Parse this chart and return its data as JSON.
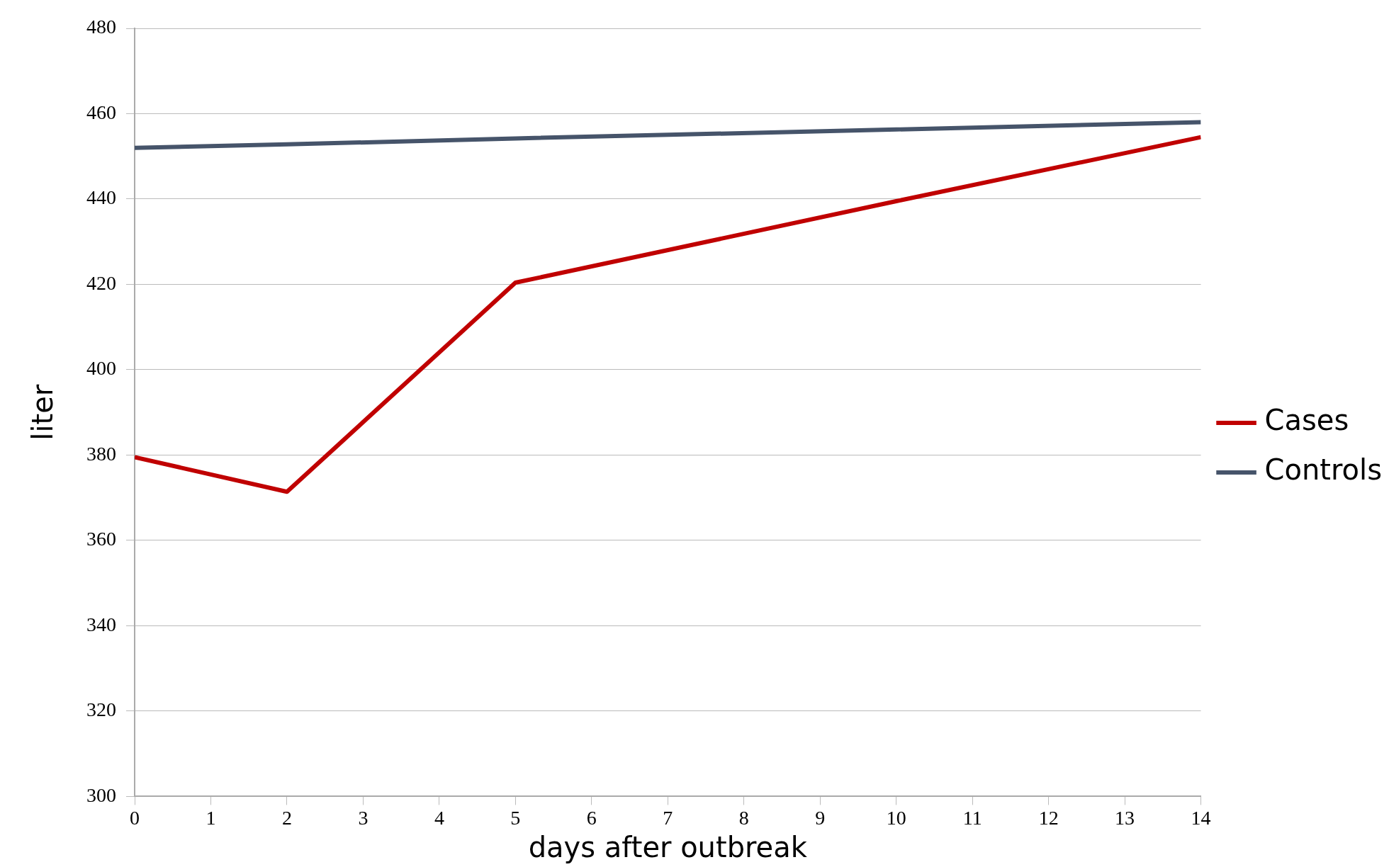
{
  "chart_data": {
    "type": "line",
    "xlabel": "days after outbreak",
    "ylabel": "liter",
    "xlim": [
      0,
      14
    ],
    "xticks": [
      0,
      1,
      2,
      3,
      4,
      5,
      6,
      7,
      8,
      9,
      10,
      11,
      12,
      13,
      14
    ],
    "ylim": [
      300,
      480
    ],
    "yticks": [
      300,
      320,
      340,
      360,
      380,
      400,
      420,
      440,
      460,
      480
    ],
    "series": [
      {
        "name": "Cases",
        "color": "#c00000",
        "x": [
          0,
          2,
          5,
          10,
          14
        ],
        "values": [
          379.5,
          371.4,
          420.4,
          439.5,
          454.5
        ]
      },
      {
        "name": "Controls",
        "color": "#46546a",
        "x": [
          0,
          2,
          5,
          10,
          14
        ],
        "values": [
          452,
          452.8,
          454.2,
          456.3,
          458
        ]
      }
    ],
    "grid": "y",
    "legend": "right",
    "marker": "none",
    "line_style": "solid"
  }
}
